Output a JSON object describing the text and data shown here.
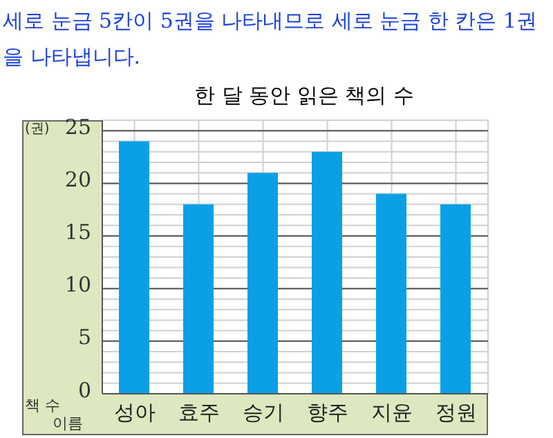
{
  "chart_data": {
    "type": "bar",
    "title": "한 달 동안 읽은 책의 수",
    "xlabel": "이름",
    "ylabel": "책 수",
    "annotations": [
      "세로 눈금 5칸이 5권을 나타내므로 세로 눈금 한 칸은 1권을 나타냅니다.",
      "(권)"
    ],
    "categories": [
      "성아",
      "효주",
      "승기",
      "향주",
      "지윤",
      "정원"
    ],
    "values": [
      24,
      18,
      21,
      23,
      19,
      18
    ],
    "color": "#0aa0e6",
    "ylim": [
      0,
      26
    ],
    "yticks": [
      0,
      5,
      10,
      15,
      20,
      25
    ],
    "grid": true
  }
}
